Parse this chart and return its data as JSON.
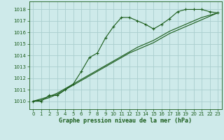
{
  "x": [
    0,
    1,
    2,
    3,
    4,
    5,
    6,
    7,
    8,
    9,
    10,
    11,
    12,
    13,
    14,
    15,
    16,
    17,
    18,
    19,
    20,
    21,
    22,
    23
  ],
  "line1": [
    1010.0,
    1010.0,
    1010.5,
    1010.5,
    1011.0,
    1011.5,
    1012.6,
    1013.8,
    1014.2,
    1015.5,
    1016.5,
    1017.3,
    1017.3,
    1017.0,
    1016.7,
    1016.3,
    1016.7,
    1017.2,
    1017.8,
    1018.0,
    1018.0,
    1018.0,
    1017.8,
    1017.7
  ],
  "line2_x": [
    0,
    1,
    2,
    3,
    4,
    5,
    6,
    7,
    8,
    9,
    10,
    11,
    12,
    13,
    14,
    15,
    16,
    17,
    18,
    19,
    20,
    21,
    22,
    23
  ],
  "line2": [
    1010.0,
    1010.1,
    1010.3,
    1010.6,
    1011.0,
    1011.4,
    1011.8,
    1012.2,
    1012.6,
    1013.0,
    1013.4,
    1013.8,
    1014.2,
    1014.5,
    1014.8,
    1015.1,
    1015.5,
    1015.9,
    1016.2,
    1016.5,
    1016.8,
    1017.1,
    1017.4,
    1017.7
  ],
  "line3_x": [
    0,
    1,
    2,
    3,
    4,
    5,
    6,
    7,
    8,
    9,
    10,
    11,
    12,
    13,
    14,
    15,
    16,
    17,
    18,
    19,
    20,
    21,
    22,
    23
  ],
  "line3": [
    1010.0,
    1010.2,
    1010.4,
    1010.7,
    1011.1,
    1011.5,
    1011.9,
    1012.3,
    1012.7,
    1013.1,
    1013.5,
    1013.9,
    1014.3,
    1014.7,
    1015.0,
    1015.3,
    1015.7,
    1016.1,
    1016.4,
    1016.7,
    1017.0,
    1017.3,
    1017.5,
    1017.7
  ],
  "bg_color": "#ceeaea",
  "grid_color": "#aacece",
  "line_color": "#1a5c1a",
  "ylabel_ticks": [
    1010,
    1011,
    1012,
    1013,
    1014,
    1015,
    1016,
    1017,
    1018
  ],
  "xlabel": "Graphe pression niveau de la mer (hPa)",
  "ylim": [
    1009.3,
    1018.7
  ],
  "xlim": [
    -0.5,
    23.5
  ]
}
